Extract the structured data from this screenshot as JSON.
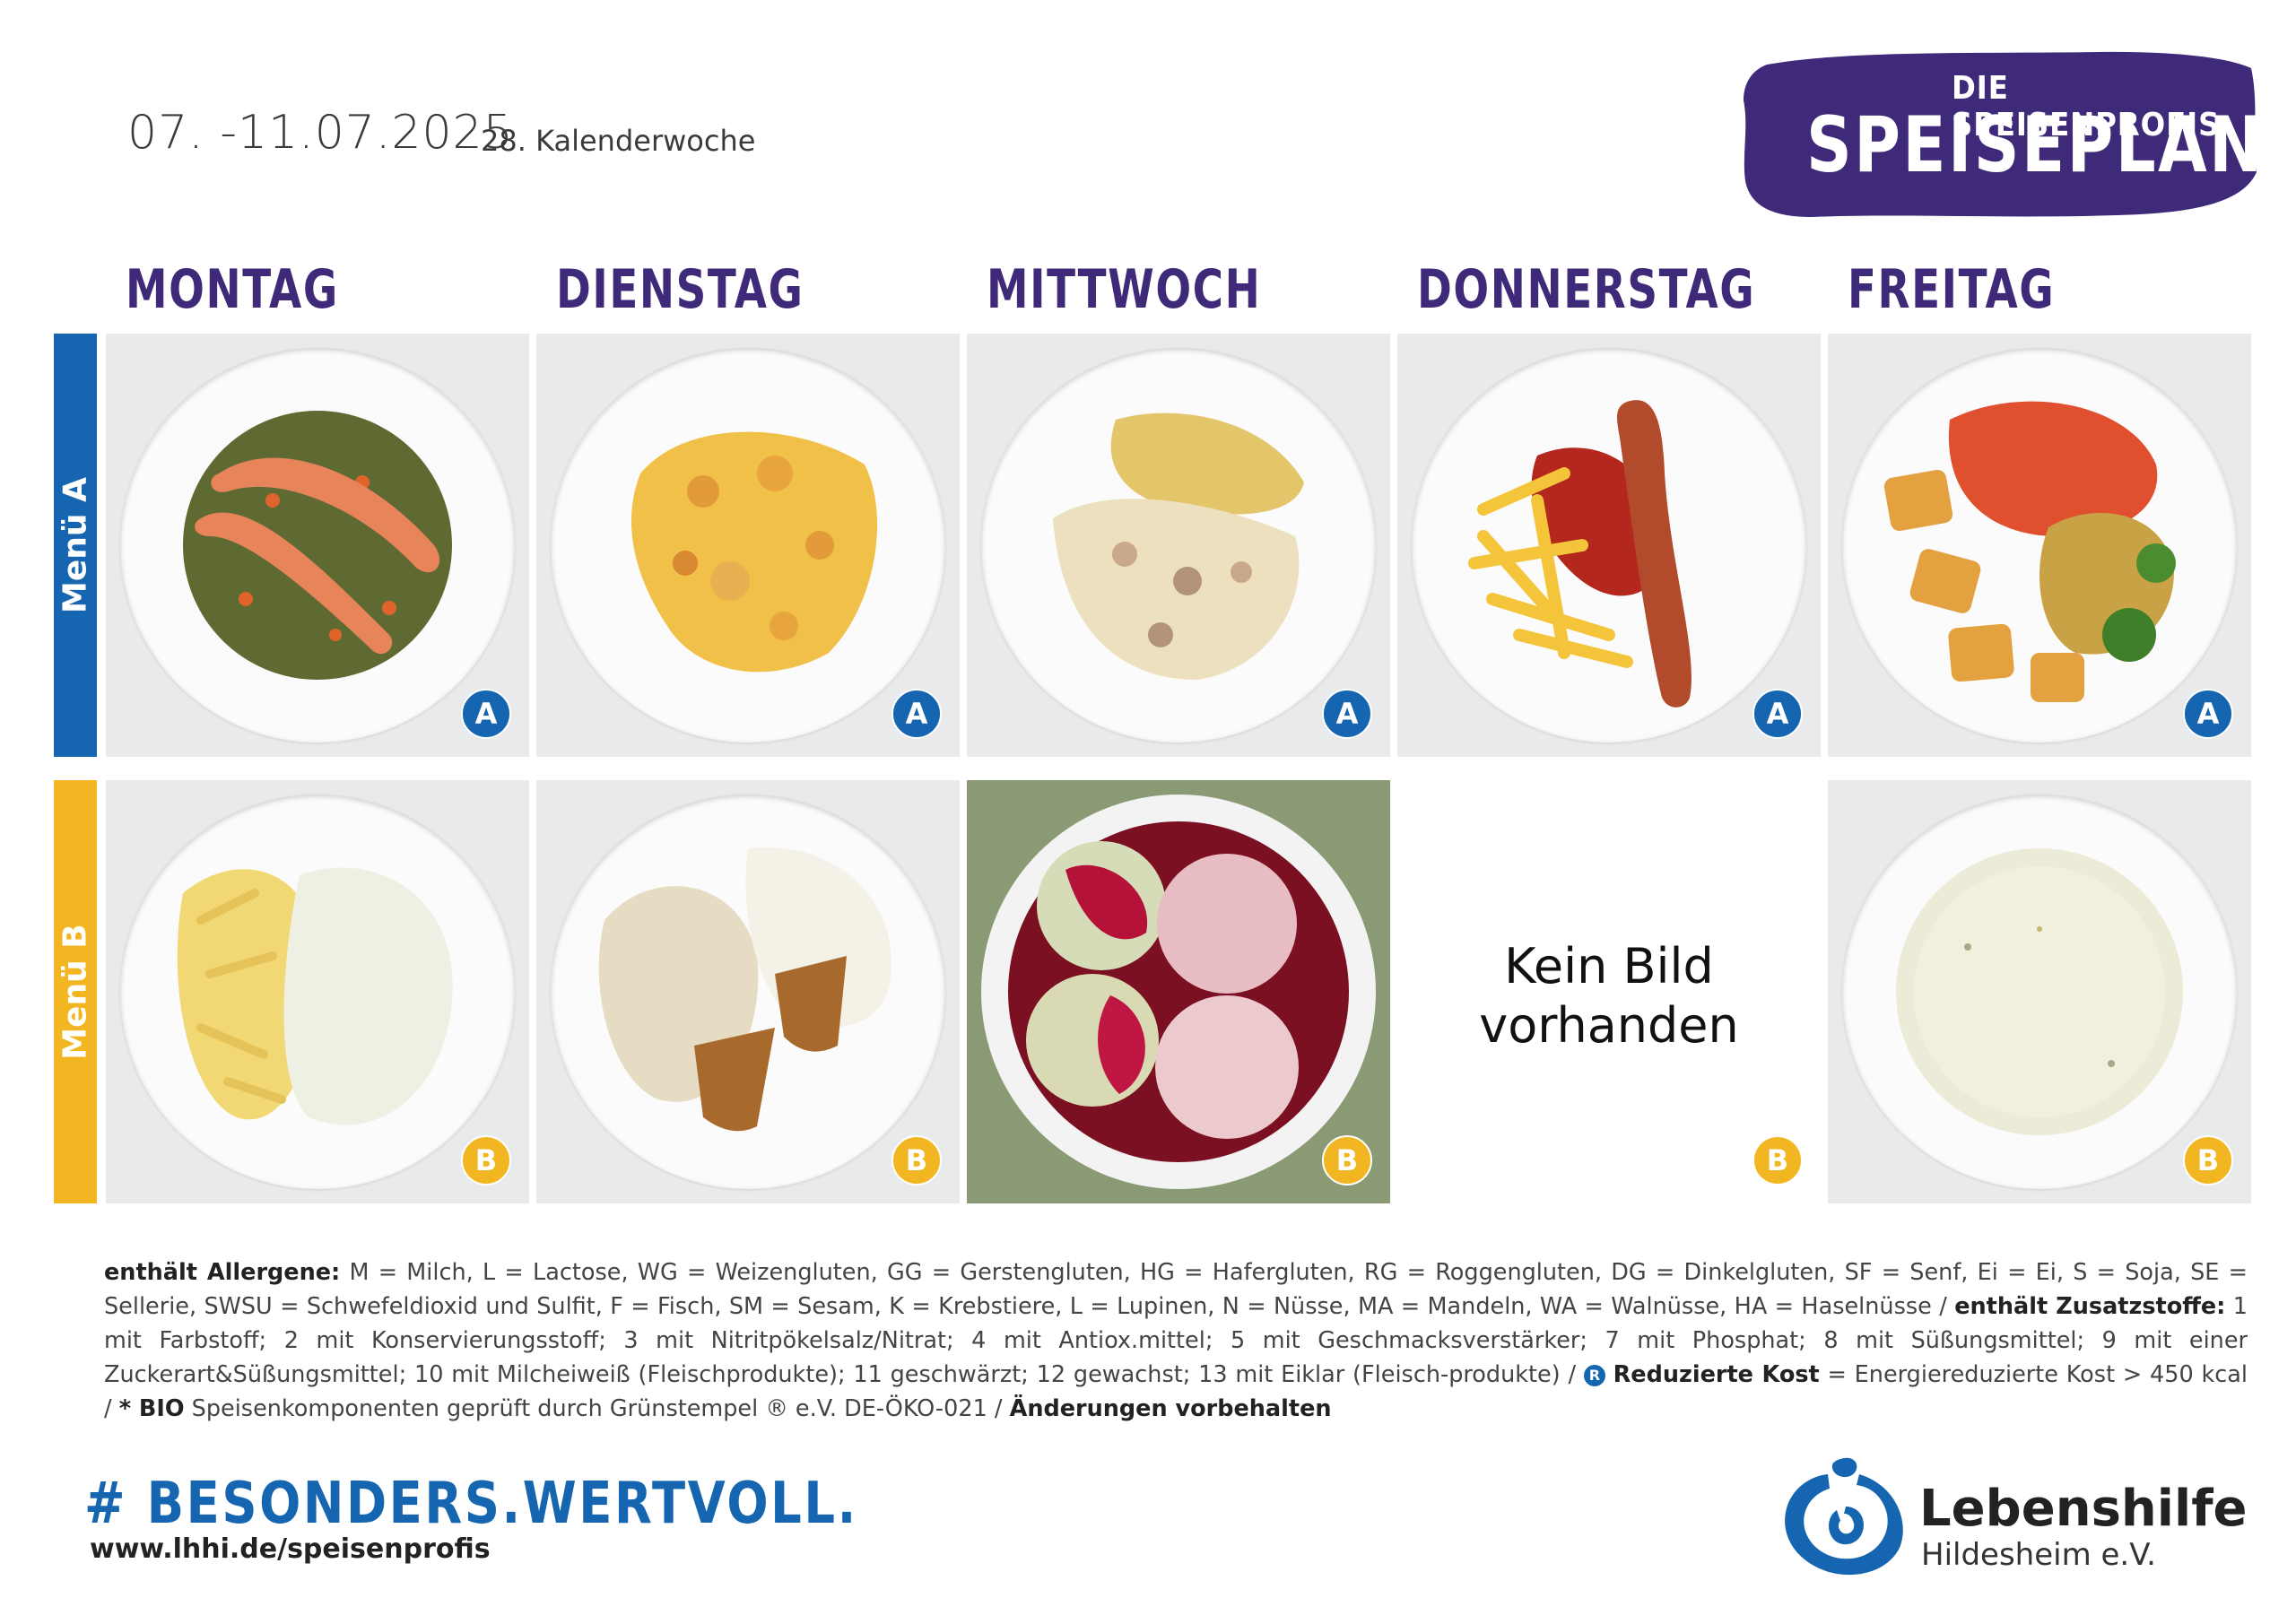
{
  "header": {
    "date_range": "07. -11.07.2025",
    "week": "28. Kalenderwoche"
  },
  "brand": {
    "top": "DIE SPEISENPROFIS",
    "main": "SPEISEPLAN"
  },
  "days": [
    "MONTAG",
    "DIENSTAG",
    "MITTWOCH",
    "DONNERSTAG",
    "FREITAG"
  ],
  "menus": {
    "a_label": "Menü A",
    "b_label": "Menü B",
    "a_badge": "A",
    "b_badge": "B"
  },
  "no_image_text": "Kein Bild vorhanden",
  "legend": {
    "allergens_title": "enthält Allergene:",
    "allergens_text": " M = Milch, L = Lactose, WG = Weizengluten, GG = Gerstengluten, HG = Hafergluten, RG = Roggengluten, DG = Dinkelgluten, SF = Senf, Ei = Ei, S = Soja, SE = Sellerie, SWSU = Schwefeldioxid und Sulfit, F = Fisch, SM = Sesam, K = Krebstiere, L = Lupinen, N = Nüsse, MA = Mandeln, WA = Walnüsse, HA = Haselnüsse / ",
    "additives_title": "enthält Zusatzstoffe:",
    "additives_text": " 1 mit Farbstoff; 2 mit Konservierungsstoff; 3 mit Nitritpökelsalz/Nitrat; 4 mit Antiox.mittel; 5 mit Geschmacksverstärker; 7 mit Phosphat; 8 mit Süßungsmittel; 9 mit einer Zuckerart&Süßungsmittel; 10 mit Milcheiweiß (Fleischprodukte); 11 geschwärzt; 12 gewachst; 13 mit Eiklar (Fleisch-produkte) / ",
    "reduced_symbol": "R",
    "reduced_title": "Reduzierte Kost",
    "reduced_text": " = Energiereduzierte Kost > 450 kcal / ",
    "bio_title": "* BIO",
    "bio_text": " Speisenkomponenten geprüft durch Grünstempel ® e.V. DE-ÖKO-021 / ",
    "changes": "Änderungen vorbehalten"
  },
  "footer": {
    "hashtag": "# BESONDERS.WERTVOLL.",
    "url": "www.lhhi.de/speisenprofis",
    "org_name": "Lebenshilfe",
    "org_sub": "Hildesheim e.V."
  },
  "colors": {
    "menu_a": "#1565b0",
    "menu_b": "#f2b622",
    "day_purple": "#3f2a7a"
  }
}
